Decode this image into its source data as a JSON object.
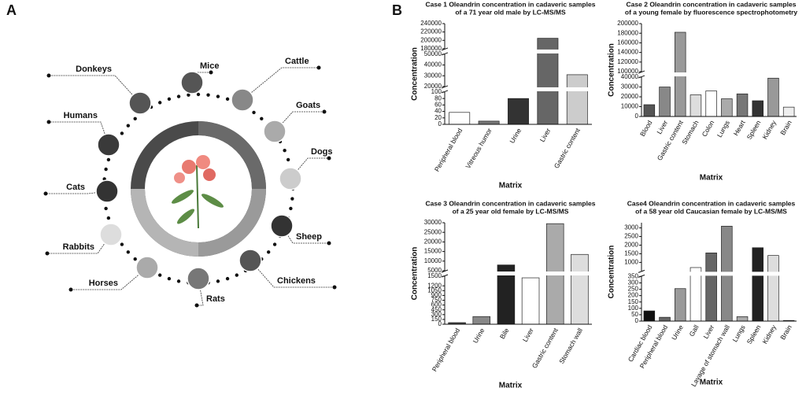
{
  "diagram": {
    "panel_label": "A",
    "animals": [
      {
        "label": "Mice",
        "color": "#555555"
      },
      {
        "label": "Cattle",
        "color": "#888888"
      },
      {
        "label": "Goats",
        "color": "#aaaaaa"
      },
      {
        "label": "Dogs",
        "color": "#cccccc"
      },
      {
        "label": "Sheep",
        "color": "#333333"
      },
      {
        "label": "Chickens",
        "color": "#555555"
      },
      {
        "label": "Rats",
        "color": "#777777"
      },
      {
        "label": "Horses",
        "color": "#aaaaaa"
      },
      {
        "label": "Rabbits",
        "color": "#dddddd"
      },
      {
        "label": "Cats",
        "color": "#333333"
      },
      {
        "label": "Humans",
        "color": "#3a3a3a"
      },
      {
        "label": "Donkeys",
        "color": "#555555"
      }
    ]
  },
  "panel_label_b": "B",
  "chart_data": [
    {
      "type": "bar",
      "title": [
        "Case 1 Oleandrin concentration in cadaveric samples",
        "of a 71 year old male by LC-MS/MS"
      ],
      "y_label": "Concentration",
      "x_label": "Matrix",
      "categories": [
        "Peripheral blood",
        "Vitreous humor",
        "Urine",
        "Liver",
        "Gastric content"
      ],
      "values": [
        37,
        10,
        80,
        205000,
        31000
      ],
      "colors": [
        "#ffffff",
        "#777777",
        "#333333",
        "#666666",
        "#cccccc"
      ],
      "y_segments": [
        {
          "ylim": [
            0,
            100
          ],
          "yticks": [
            0,
            20,
            40,
            60,
            80,
            100
          ]
        },
        {
          "ylim": [
            20000,
            50000
          ],
          "yticks": [
            20000,
            30000,
            40000,
            50000
          ]
        },
        {
          "ylim": [
            180000,
            240000
          ],
          "yticks": [
            180000,
            200000,
            220000,
            240000
          ]
        }
      ]
    },
    {
      "type": "bar",
      "title": [
        "Case 2 Oleandrin concentration in cadaveric samples",
        "of a young female by fluorescence spectrophotometry"
      ],
      "y_label": "Concentration",
      "x_label": "Matrix",
      "categories": [
        "Blood",
        "Liver",
        "Gastric content",
        "Stomach",
        "Colon",
        "Lungs",
        "Heart",
        "Spleen",
        "Kidney",
        "Brain"
      ],
      "values": [
        12000,
        30000,
        182000,
        22000,
        26000,
        18000,
        23000,
        16000,
        39000,
        9500
      ],
      "colors": [
        "#555555",
        "#888888",
        "#999999",
        "#dddddd",
        "#ffffff",
        "#aaaaaa",
        "#777777",
        "#333333",
        "#999999",
        "#eeeeee"
      ],
      "y_segments": [
        {
          "ylim": [
            0,
            40000
          ],
          "yticks": [
            0,
            10000,
            20000,
            30000,
            40000
          ]
        },
        {
          "ylim": [
            100000,
            200000
          ],
          "yticks": [
            100000,
            120000,
            140000,
            160000,
            180000,
            200000
          ]
        }
      ]
    },
    {
      "type": "bar",
      "title": [
        "Case 3 Oleandrin concentration in cadaveric samples",
        "of a 25 year old female by LC-MS/MS"
      ],
      "y_label": "Concentration",
      "x_label": "Matrix",
      "categories": [
        "Peripheral blood",
        "Urine",
        "Bile",
        "Liver",
        "Gastric content",
        "Stomach wall"
      ],
      "values": [
        50,
        240,
        8000,
        1450,
        29500,
        13500
      ],
      "colors": [
        "#444444",
        "#888888",
        "#222222",
        "#ffffff",
        "#aaaaaa",
        "#dddddd"
      ],
      "y_segments": [
        {
          "ylim": [
            0,
            1500
          ],
          "yticks": [
            0,
            150,
            300,
            450,
            600,
            750,
            900,
            1050,
            1200,
            1500
          ]
        },
        {
          "ylim": [
            5000,
            30000
          ],
          "yticks": [
            5000,
            10000,
            15000,
            20000,
            25000,
            30000
          ]
        }
      ]
    },
    {
      "type": "bar",
      "title": [
        "Case4 Oleandrin concentration in cadaveric samples",
        "of a 58 year old Caucasian female by LC-MS/MS"
      ],
      "y_label": "Concentration",
      "x_label": "Matrix",
      "categories": [
        "Cardiac blood",
        "Peripheral blood",
        "Urine",
        "Gall",
        "Liver",
        "Lavage of stomach wall",
        "Lungs",
        "Spleen",
        "Kidney",
        "Brain"
      ],
      "values": [
        80,
        30,
        255,
        700,
        1550,
        3100,
        35,
        1850,
        1400,
        5
      ],
      "colors": [
        "#111111",
        "#666666",
        "#999999",
        "#ffffff",
        "#666666",
        "#888888",
        "#aaaaaa",
        "#222222",
        "#dddddd",
        "#444444"
      ],
      "y_segments": [
        {
          "ylim": [
            0,
            350
          ],
          "yticks": [
            0,
            50,
            100,
            150,
            200,
            250,
            300,
            350
          ]
        },
        {
          "ylim": [
            500,
            3300
          ],
          "yticks": [
            1000,
            1500,
            2000,
            2500,
            3000
          ]
        }
      ]
    }
  ]
}
